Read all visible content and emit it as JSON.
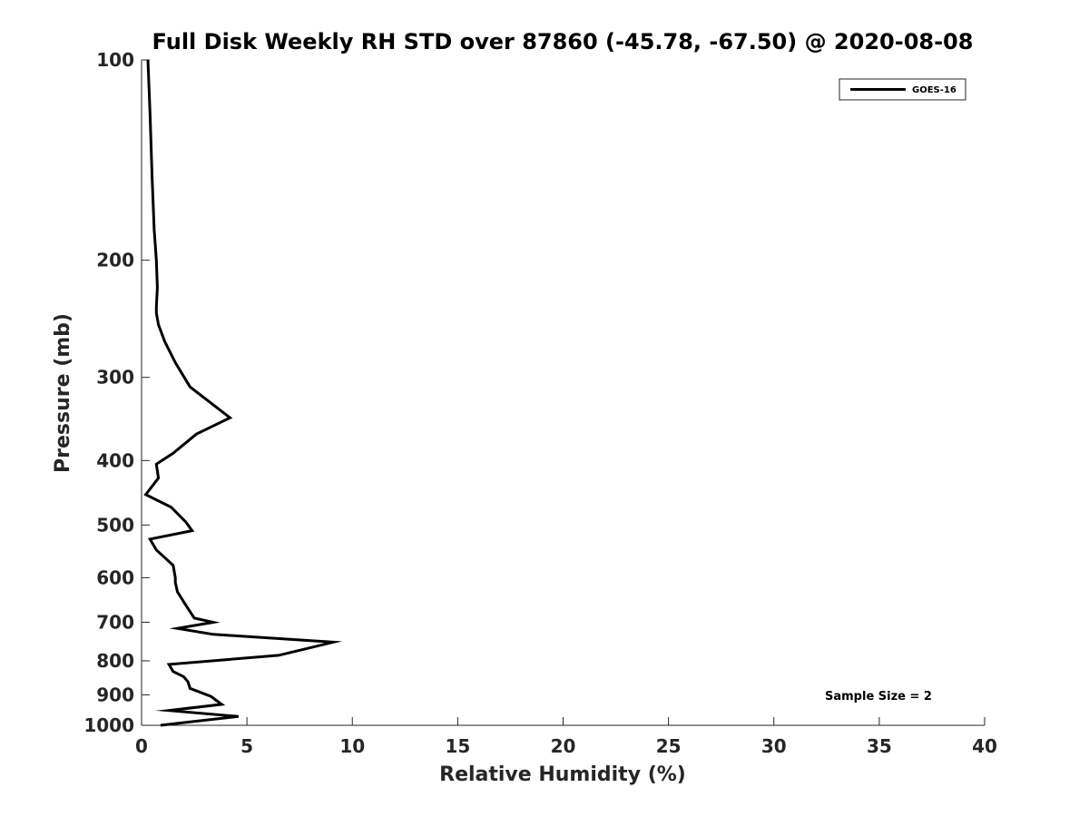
{
  "chart_data": {
    "type": "line",
    "title": "Full Disk Weekly RH STD over 87860 (-45.78, -67.50) @ 2020-08-08",
    "xlabel": "Relative Humidity (%)",
    "ylabel": "Pressure (mb)",
    "xlim": [
      0,
      40
    ],
    "ylim": [
      100,
      1000
    ],
    "yscale": "log",
    "y_reversed": true,
    "grid": false,
    "x_ticks": [
      0,
      5,
      10,
      15,
      20,
      25,
      30,
      35,
      40
    ],
    "y_ticks": [
      100,
      200,
      300,
      400,
      500,
      600,
      700,
      800,
      900,
      1000
    ],
    "legend": {
      "location": "top-right",
      "entries": [
        "GOES-16"
      ]
    },
    "annotations": [
      {
        "text": "Sample Size = 2",
        "location": "bottom-right"
      }
    ],
    "series": [
      {
        "name": "GOES-16",
        "color": "#000000",
        "x": [
          0.3,
          0.4,
          0.5,
          0.6,
          0.7,
          0.75,
          0.7,
          0.7,
          0.8,
          1.1,
          1.6,
          2.3,
          4.2,
          2.6,
          1.5,
          0.7,
          0.8,
          0.2,
          1.4,
          2.1,
          2.4,
          0.4,
          0.7,
          1.5,
          1.6,
          1.6,
          1.7,
          2.1,
          2.5,
          3.4,
          1.7,
          3.4,
          9.1,
          6.5,
          1.3,
          1.5,
          2.0,
          2.2,
          2.3,
          3.3,
          3.6,
          3.8,
          1.3,
          4.6,
          2.1,
          0.9
        ],
        "y": [
          100,
          120,
          150,
          180,
          200,
          220,
          235,
          240,
          250,
          265,
          285,
          310,
          345,
          365,
          390,
          405,
          425,
          450,
          470,
          495,
          510,
          525,
          545,
          575,
          600,
          610,
          630,
          660,
          690,
          700,
          715,
          730,
          750,
          785,
          810,
          830,
          845,
          860,
          880,
          905,
          920,
          930,
          950,
          970,
          990,
          1000
        ]
      }
    ]
  }
}
